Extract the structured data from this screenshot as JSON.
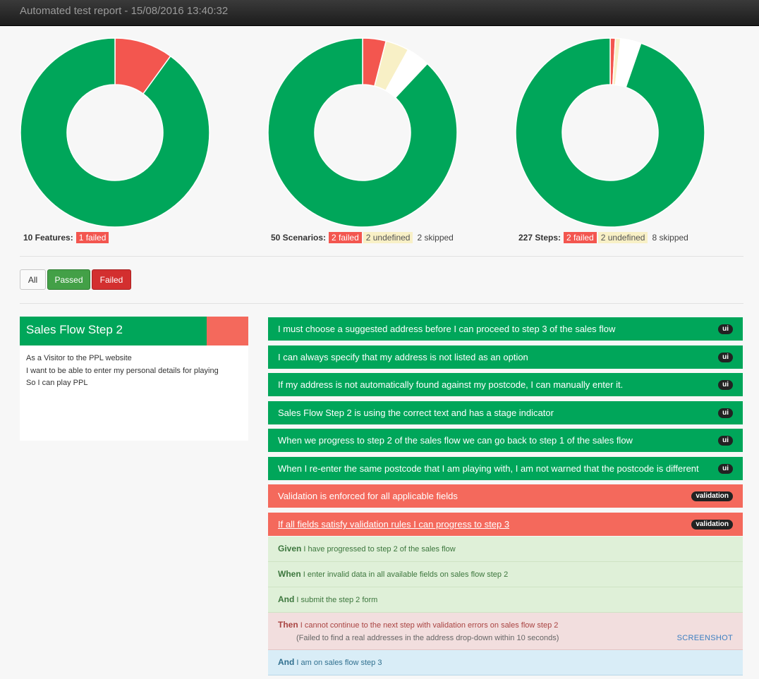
{
  "header": {
    "title": "Automated test report - 15/08/2016 13:40:32"
  },
  "colors": {
    "passed": "#00a65a",
    "failed": "#f3564f",
    "undefined": "#f8f0c6",
    "skipped": "#ffffff"
  },
  "chart_data": [
    {
      "type": "pie",
      "label": "Features",
      "total": 10,
      "slices": [
        {
          "name": "passed",
          "value": 9
        },
        {
          "name": "failed",
          "value": 1
        }
      ]
    },
    {
      "type": "pie",
      "label": "Scenarios",
      "total": 50,
      "slices": [
        {
          "name": "passed",
          "value": 44
        },
        {
          "name": "failed",
          "value": 2
        },
        {
          "name": "undefined",
          "value": 2
        },
        {
          "name": "skipped",
          "value": 2
        }
      ]
    },
    {
      "type": "pie",
      "label": "Steps",
      "total": 227,
      "slices": [
        {
          "name": "passed",
          "value": 215
        },
        {
          "name": "failed",
          "value": 2
        },
        {
          "name": "undefined",
          "value": 2
        },
        {
          "name": "skipped",
          "value": 8
        }
      ]
    }
  ],
  "summaries": [
    {
      "label": "10 Features:",
      "failed": "1 failed"
    },
    {
      "label": "50 Scenarios:",
      "failed": "2 failed",
      "undefined": "2 undefined",
      "skipped": "2 skipped"
    },
    {
      "label": "227 Steps:",
      "failed": "2 failed",
      "undefined": "2 undefined",
      "skipped": "8 skipped"
    }
  ],
  "filters": {
    "all": "All",
    "passed": "Passed",
    "failed": "Failed"
  },
  "feature": {
    "name": "Sales Flow Step 2",
    "description": [
      "As a Visitor to the PPL website",
      "I want to be able to enter my personal details for playing",
      "So I can play PPL"
    ]
  },
  "scenarios": [
    {
      "status": "passed",
      "text": "I must choose a suggested address before I can proceed to step 3 of the sales flow",
      "tag": "ui"
    },
    {
      "status": "passed",
      "text": "I can always specify that my address is not listed as an option",
      "tag": "ui"
    },
    {
      "status": "passed",
      "text": "If my address is not automatically found against my postcode, I can manually enter it.",
      "tag": "ui"
    },
    {
      "status": "passed",
      "text": "Sales Flow Step 2 is using the correct text and has a stage indicator",
      "tag": "ui"
    },
    {
      "status": "passed",
      "text": "When we progress to step 2 of the sales flow we can go back to step 1 of the sales flow",
      "tag": "ui"
    },
    {
      "status": "passed",
      "text": "When I re-enter the same postcode that I am playing with, I am not warned that the postcode is different",
      "tag": "ui"
    },
    {
      "status": "failed",
      "text": "Validation is enforced for all applicable fields",
      "tag": "validation"
    },
    {
      "status": "failed",
      "text": "If all fields satisfy validation rules I can progress to step 3",
      "tag": "validation"
    }
  ],
  "steps": [
    {
      "status": "passed",
      "keyword": "Given",
      "text": "I have progressed to step 2 of the sales flow"
    },
    {
      "status": "passed",
      "keyword": "When",
      "text": "I enter invalid data in all available fields on sales flow step 2"
    },
    {
      "status": "passed",
      "keyword": "And",
      "text": "I submit the step 2 form"
    },
    {
      "status": "failed",
      "keyword": "Then",
      "text": "I cannot continue to the next step with validation errors on sales flow step 2",
      "error": "(Failed to find a real addresses in the address drop-down within 10 seconds)",
      "action": "SCREENSHOT"
    },
    {
      "status": "skipped",
      "keyword": "And",
      "text": "I am on sales flow step 3"
    }
  ]
}
